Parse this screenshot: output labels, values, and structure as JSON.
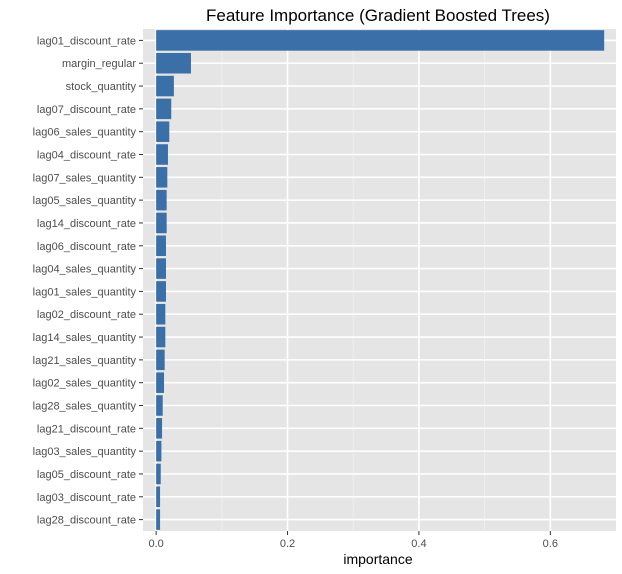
{
  "chart_data": {
    "type": "bar",
    "orientation": "horizontal",
    "title": "Feature Importance (Gradient Boosted Trees)",
    "xlabel": "importance",
    "ylabel": "",
    "xlim": [
      -0.02,
      0.7
    ],
    "xticks": [
      0.0,
      0.2,
      0.4,
      0.6
    ],
    "xtick_labels": [
      "0.0",
      "0.2",
      "0.4",
      "0.6"
    ],
    "grid": true,
    "legend": "none",
    "categories": [
      "lag01_discount_rate",
      "margin_regular",
      "stock_quantity",
      "lag07_discount_rate",
      "lag06_sales_quantity",
      "lag04_discount_rate",
      "lag07_sales_quantity",
      "lag05_sales_quantity",
      "lag14_discount_rate",
      "lag06_discount_rate",
      "lag04_sales_quantity",
      "lag01_sales_quantity",
      "lag02_discount_rate",
      "lag14_sales_quantity",
      "lag21_sales_quantity",
      "lag02_sales_quantity",
      "lag28_sales_quantity",
      "lag21_discount_rate",
      "lag03_sales_quantity",
      "lag05_discount_rate",
      "lag03_discount_rate",
      "lag28_discount_rate"
    ],
    "values": [
      0.682,
      0.053,
      0.027,
      0.023,
      0.02,
      0.018,
      0.017,
      0.016,
      0.016,
      0.015,
      0.015,
      0.015,
      0.014,
      0.014,
      0.013,
      0.012,
      0.01,
      0.009,
      0.008,
      0.007,
      0.006,
      0.006
    ]
  },
  "colors": {
    "bar": "#3a6fa8",
    "panel_background": "#e5e5e5",
    "grid_major": "#ffffff",
    "grid_minor": "#f0f0f0",
    "tick_mark": "#333333"
  }
}
